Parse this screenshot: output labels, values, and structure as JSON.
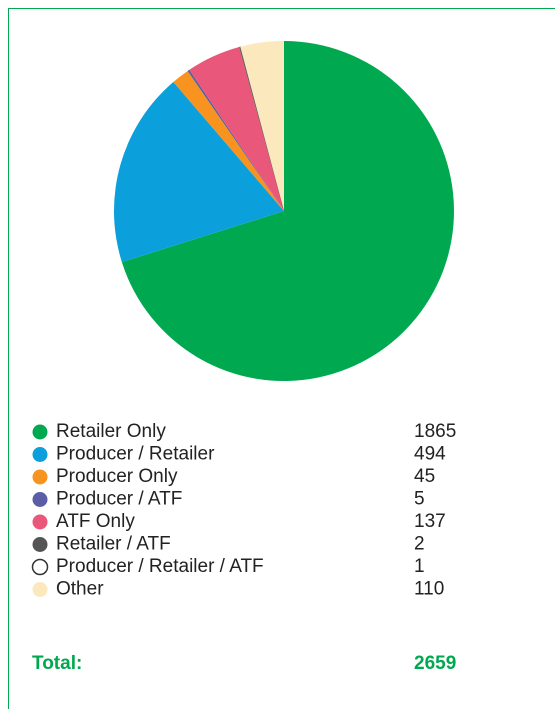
{
  "chart_data": {
    "type": "pie",
    "categories": [
      "Retailer Only",
      "Producer / Retailer",
      "Producer Only",
      "Producer / ATF",
      "ATF Only",
      "Retailer / ATF",
      "Producer / Retailer / ATF",
      "Other"
    ],
    "values": [
      1865,
      494,
      45,
      5,
      137,
      2,
      1,
      110
    ],
    "colors": [
      "#00a94f",
      "#0b9fdc",
      "#f7931e",
      "#5b5ea6",
      "#e9587b",
      "#555555",
      "#ffffff",
      "#fbe8bd"
    ],
    "total_label": "Total:",
    "total": 2659
  }
}
